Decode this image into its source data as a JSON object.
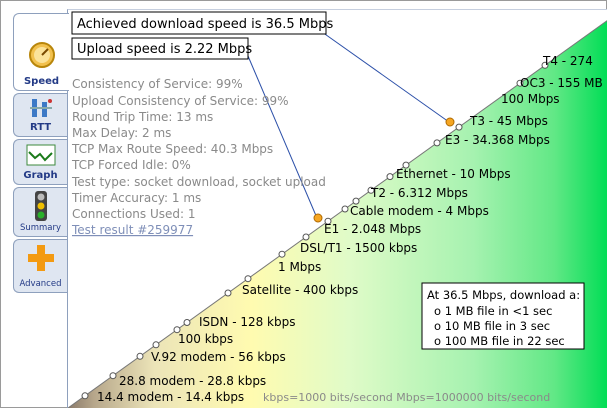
{
  "tabs": [
    {
      "label": "Speed",
      "icon": "gauge-icon"
    },
    {
      "label": "RTT",
      "icon": "antenna-icon"
    },
    {
      "label": "Graph",
      "icon": "line-graph-icon"
    },
    {
      "label": "Summary",
      "icon": "traffic-light-icon"
    },
    {
      "label": "Advanced",
      "icon": "plus-icon"
    }
  ],
  "callouts": {
    "download": "Achieved download speed is 36.5 Mbps",
    "upload": "Upload speed is 2.22 Mbps"
  },
  "stats": [
    "Consistency of Service: 99%",
    "Upload Consistency of Service: 99%",
    "Round Trip Time: 13 ms",
    "Max Delay: 2 ms",
    "TCP Max Route Speed: 40.3 Mbps",
    "TCP Forced Idle: 0%",
    "Test type: socket download, socket upload",
    "Timer Accuracy: 1 ms",
    "Connections Used: 1"
  ],
  "test_result_link": "Test result #259977",
  "speed_scale": [
    "T4 - 274",
    "OC3 - 155 MB",
    "100 Mbps",
    "T3 - 45 Mbps",
    "E3 - 34.368 Mbps",
    "Ethernet - 10 Mbps",
    "T2 - 6.312 Mbps",
    "Cable modem - 4 Mbps",
    "E1 - 2.048 Mbps",
    "DSL/T1 - 1500 kbps",
    "1 Mbps",
    "Satellite - 400 kbps",
    "ISDN - 128 kbps",
    "100 kbps",
    "V.92 modem - 56 kbps",
    "28.8 modem - 28.8 kbps",
    "14.4 modem - 14.4 kbps"
  ],
  "units_note": "kbps=1000 bits/second  Mbps=1000000 bits/second",
  "download_box": {
    "title": "At 36.5 Mbps, download a:",
    "rows": [
      "o  1 MB file in <1 sec",
      "o  10 MB file in 3 sec",
      "o  100 MB file in 22 sec"
    ]
  },
  "colors": {
    "tab_bg": "#dfe6f1",
    "tab_text": "#233a86",
    "stat_text": "#8a8a8a",
    "link": "#7f8fb8",
    "marker": "#f5a623",
    "gradient_green": "#00dd55",
    "gradient_yellow": "#fffbb0",
    "gradient_brown": "#8a7a6a"
  }
}
